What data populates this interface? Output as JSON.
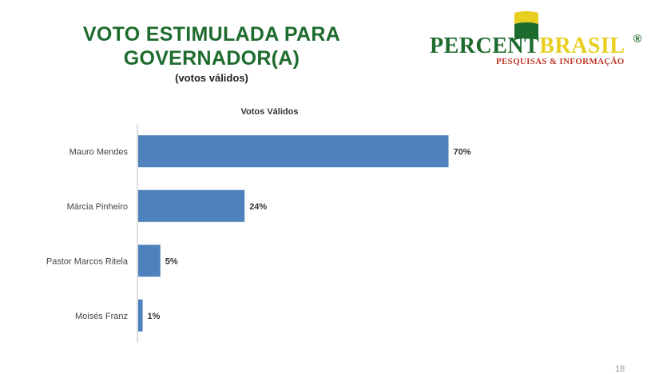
{
  "slide": {
    "title_line1": "VOTO ESTIMULADA PARA",
    "title_line2": "GOVERNADOR(A)",
    "subtitle": "(votos válidos)",
    "page_number": "18"
  },
  "logo": {
    "percent": "PERCENT",
    "brasil": "BRASIL",
    "registered": "®",
    "tagline": "PESQUISAS & INFORMAÇÃO",
    "green": "#1e6b2e",
    "yellow": "#e8cf1f",
    "red": "#c0392b"
  },
  "chart_data": {
    "type": "bar",
    "orientation": "horizontal",
    "title": "Votos Válidos",
    "categories": [
      "Mauro Mendes",
      "Márcia Pinheiro",
      "Pastor Marcos Ritela",
      "Moisés Franz"
    ],
    "values": [
      70,
      24,
      5,
      1
    ],
    "value_labels": [
      "70%",
      "24%",
      "5%",
      "1%"
    ],
    "xlim": [
      0,
      100
    ],
    "bar_color": "#4f81bd",
    "grid": false,
    "legend": "none"
  }
}
